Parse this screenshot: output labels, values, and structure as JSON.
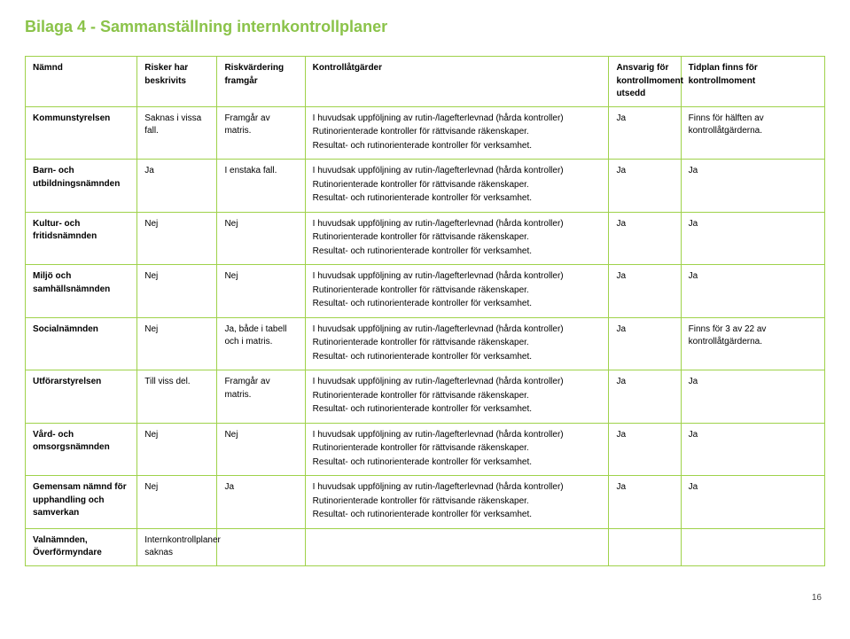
{
  "title": "Bilaga 4 - Sammanställning internkontrollplaner",
  "pageNumber": "16",
  "headers": {
    "namnd": "Nämnd",
    "risker": "Risker har beskrivits",
    "riskv": "Riskvärdering framgår",
    "kontroll": "Kontrollåtgärder",
    "ansvarig": "Ansvarig för kontrollmoment utsedd",
    "tidplan": "Tidplan finns för kontrollmoment"
  },
  "kontrollBlock": {
    "l1": "I huvudsak uppföljning av rutin-/lagefterlevnad (hårda kontroller)",
    "l2": "Rutinorienterade kontroller för rättvisande räkenskaper.",
    "l3": "Resultat- och rutinorienterade kontroller för verksamhet."
  },
  "rows": [
    {
      "namnd": "Kommunstyrelsen",
      "risker": "Saknas i vissa fall.",
      "riskv": "Framgår av matris.",
      "ansvarig": "Ja",
      "tidplan": "Finns för hälften av kontrollåtgärderna.",
      "kontrollLast": false
    },
    {
      "namnd": "Barn- och utbildningsnämnden",
      "risker": "Ja",
      "riskv": "I enstaka fall.",
      "ansvarig": "Ja",
      "tidplan": "Ja",
      "kontrollLast": false
    },
    {
      "namnd": "Kultur- och fritidsnämnden",
      "risker": "Nej",
      "riskv": "Nej",
      "ansvarig": "Ja",
      "tidplan": "Ja",
      "kontrollLast": false
    },
    {
      "namnd": "Miljö och samhällsnämnden",
      "risker": "Nej",
      "riskv": "Nej",
      "ansvarig": "Ja",
      "tidplan": "Ja",
      "kontrollLast": false
    },
    {
      "namnd": "Socialnämnden",
      "risker": "Nej",
      "riskv": "Ja, både i tabell och i matris.",
      "ansvarig": "Ja",
      "tidplan": "Finns för 3 av 22 av kontrollåtgärderna.",
      "kontrollLast": false
    },
    {
      "namnd": "Utförarstyrelsen",
      "risker": "Till viss del.",
      "riskv": "Framgår av matris.",
      "ansvarig": "Ja",
      "tidplan": "Ja",
      "kontrollLast": false
    },
    {
      "namnd": "Vård- och omsorgsnämnden",
      "risker": "Nej",
      "riskv": "Nej",
      "ansvarig": "Ja",
      "tidplan": "Ja",
      "kontrollLast": false
    },
    {
      "namnd": "Gemensam nämnd för upphandling och samverkan",
      "risker": "Nej",
      "riskv": "Ja",
      "ansvarig": "Ja",
      "tidplan": "Ja",
      "kontrollLast": false
    },
    {
      "namnd": "Valnämnden, Överförmyndare",
      "risker": "Internkontrollplaner saknas",
      "riskv": "",
      "ansvarig": "",
      "tidplan": "",
      "kontrollLast": true
    }
  ]
}
